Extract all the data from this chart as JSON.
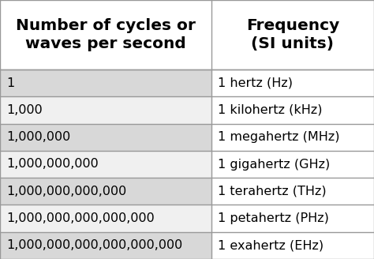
{
  "col1_header": "Number of cycles or\nwaves per second",
  "col2_header": "Frequency\n(SI units)",
  "rows": [
    [
      "1",
      "1 hertz (Hz)"
    ],
    [
      "1,000",
      "1 kilohertz (kHz)"
    ],
    [
      "1,000,000",
      "1 megahertz (MHz)"
    ],
    [
      "1,000,000,000",
      "1 gigahertz (GHz)"
    ],
    [
      "1,000,000,000,000",
      "1 terahertz (THz)"
    ],
    [
      "1,000,000,000,000,000",
      "1 petahertz (PHz)"
    ],
    [
      "1,000,000,000,000,000,000",
      "1 exahertz (EHz)"
    ]
  ],
  "header_bg": "#ffffff",
  "row_bg_odd": "#d8d8d8",
  "row_bg_even": "#f0f0f0",
  "row_right_bg": "#f0f0f0",
  "border_color": "#999999",
  "text_color": "#000000",
  "header_fontsize": 14.5,
  "row_fontsize": 11.5,
  "col_split": 0.565,
  "fig_bg": "#ffffff",
  "fig_w": 4.74,
  "fig_h": 3.28,
  "dpi": 100
}
